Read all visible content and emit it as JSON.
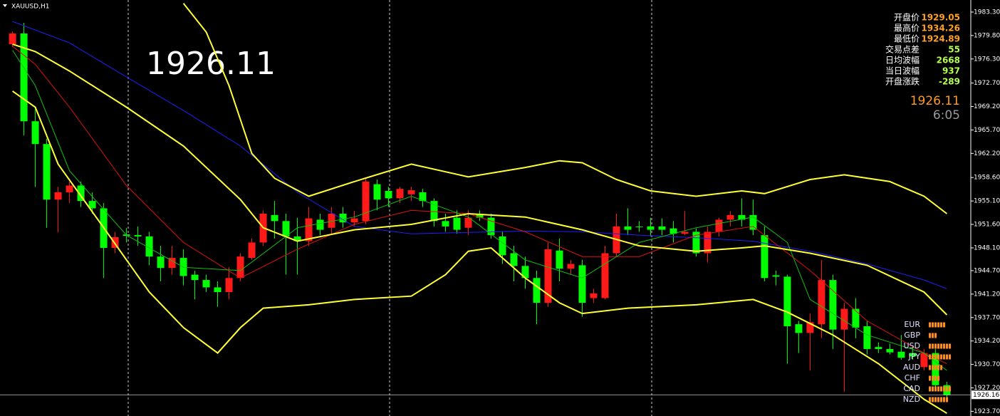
{
  "chart_data": {
    "type": "candlestick",
    "title": "XAUUSD,H1",
    "up_color": "#ff1a1a",
    "down_color": "#00ff00",
    "xlim": [
      -1.1,
      84.1
    ],
    "ylim": [
      1923.0,
      1985.1
    ],
    "yticks": [
      {
        "value": 1983.3,
        "label": "1983.30"
      },
      {
        "value": 1979.8,
        "label": "1979.80"
      },
      {
        "value": 1976.3,
        "label": "1976.30"
      },
      {
        "value": 1972.7,
        "label": "1972.70"
      },
      {
        "value": 1969.2,
        "label": "1969.20"
      },
      {
        "value": 1965.7,
        "label": "1965.70"
      },
      {
        "value": 1962.2,
        "label": "1962.20"
      },
      {
        "value": 1958.6,
        "label": "1958.60"
      },
      {
        "value": 1955.1,
        "label": "1955.10"
      },
      {
        "value": 1951.6,
        "label": "1951.60"
      },
      {
        "value": 1948.1,
        "label": "1948.10"
      },
      {
        "value": 1944.7,
        "label": "1944.70"
      },
      {
        "value": 1941.2,
        "label": "1941.20"
      },
      {
        "value": 1937.7,
        "label": "1937.70"
      },
      {
        "value": 1934.2,
        "label": "1934.20"
      },
      {
        "value": 1930.7,
        "label": "1930.70"
      },
      {
        "value": 1927.2,
        "label": "1927.20"
      },
      {
        "value": 1923.7,
        "label": "1923.70"
      }
    ],
    "current_price": 1926.16,
    "open": [
      1978.5,
      1980.1,
      1967.0,
      1963.6,
      1955.3,
      1956.4,
      1957.4,
      1955.1,
      1954.0,
      1948.1,
      1950.1,
      1950.0,
      1949.8,
      1946.8,
      1945.1,
      1946.6,
      1944.1,
      1943.3,
      1942.2,
      1941.5,
      1943.6,
      1946.6,
      1948.9,
      1953.0,
      1952.1,
      1949.8,
      1949.1,
      1952.3,
      1951.1,
      1953.2,
      1951.9,
      1952.1,
      1957.6,
      1956.6,
      1955.5,
      1956.1,
      1956.4,
      1955.1,
      1952.1,
      1952.6,
      1951.1,
      1953.2,
      1952.6,
      1949.8,
      1947.3,
      1945.4,
      1943.6,
      1939.9,
      1947.7,
      1945.0,
      1945.5,
      1940.6,
      1940.6,
      1947.3,
      1951.3,
      1951.3,
      1951.3,
      1951.3,
      1951.0,
      1950.2,
      1950.5,
      1947.3,
      1950.5,
      1952.3,
      1953.0,
      1953.0,
      1950.0,
      1944.0,
      1943.8,
      1936.7,
      1935.4,
      1936.7,
      1943.3,
      1935.9,
      1939.0,
      1936.4,
      1933.3,
      1933.0,
      1932.6,
      1932.4,
      1930.3,
      1932.4,
      1927.6
    ],
    "high": [
      1980.4,
      1981.7,
      1969.1,
      1964.4,
      1957.2,
      1958.0,
      1958.0,
      1956.4,
      1954.8,
      1950.5,
      1951.1,
      1951.3,
      1950.5,
      1948.4,
      1948.4,
      1947.9,
      1944.7,
      1944.1,
      1943.1,
      1945.2,
      1947.3,
      1949.5,
      1953.7,
      1955.1,
      1953.2,
      1952.6,
      1954.2,
      1953.2,
      1954.2,
      1954.2,
      1953.6,
      1958.5,
      1958.3,
      1957.2,
      1957.2,
      1957.2,
      1956.9,
      1955.5,
      1953.2,
      1953.7,
      1953.7,
      1953.7,
      1953.2,
      1950.5,
      1948.4,
      1946.8,
      1944.7,
      1948.9,
      1949.5,
      1946.3,
      1946.3,
      1942.0,
      1948.4,
      1953.2,
      1954.0,
      1952.1,
      1952.6,
      1952.5,
      1952.1,
      1953.6,
      1951.0,
      1951.3,
      1952.6,
      1953.6,
      1955.5,
      1955.3,
      1951.3,
      1944.7,
      1944.1,
      1937.2,
      1938.3,
      1946.3,
      1944.1,
      1939.9,
      1940.6,
      1937.2,
      1934.0,
      1933.8,
      1935.1,
      1933.5,
      1933.0,
      1933.0,
      1928.1
    ],
    "low": [
      1978.1,
      1964.9,
      1957.2,
      1951.1,
      1950.4,
      1954.8,
      1954.2,
      1953.2,
      1943.6,
      1947.3,
      1948.9,
      1948.4,
      1945.5,
      1943.1,
      1944.1,
      1942.5,
      1940.4,
      1941.5,
      1939.3,
      1940.4,
      1943.1,
      1946.3,
      1948.4,
      1949.5,
      1944.1,
      1944.1,
      1948.4,
      1950.0,
      1950.0,
      1951.1,
      1951.3,
      1951.6,
      1953.7,
      1954.2,
      1954.8,
      1955.1,
      1954.2,
      1951.3,
      1950.5,
      1950.2,
      1950.0,
      1952.1,
      1949.5,
      1945.7,
      1943.1,
      1942.0,
      1936.7,
      1939.3,
      1943.1,
      1944.1,
      1937.8,
      1939.9,
      1940.4,
      1946.8,
      1950.0,
      1950.5,
      1949.8,
      1950.0,
      1948.9,
      1950.0,
      1946.8,
      1945.9,
      1949.8,
      1951.3,
      1951.3,
      1950.0,
      1943.1,
      1942.5,
      1930.8,
      1932.4,
      1929.8,
      1934.6,
      1933.0,
      1926.6,
      1934.6,
      1932.2,
      1932.4,
      1932.2,
      1931.4,
      1931.4,
      1929.8,
      1926.8,
      1925.5
    ],
    "close": [
      1980.1,
      1967.0,
      1963.6,
      1955.3,
      1956.4,
      1957.4,
      1955.1,
      1954.0,
      1948.1,
      1949.7,
      1949.9,
      1949.8,
      1946.8,
      1945.1,
      1946.6,
      1943.9,
      1943.3,
      1942.2,
      1941.5,
      1943.6,
      1946.8,
      1948.9,
      1953.2,
      1952.1,
      1949.8,
      1949.1,
      1952.5,
      1950.8,
      1953.2,
      1951.9,
      1952.5,
      1958.0,
      1955.3,
      1955.5,
      1956.9,
      1956.7,
      1955.1,
      1952.1,
      1951.3,
      1950.8,
      1952.6,
      1952.6,
      1950.0,
      1947.0,
      1945.4,
      1943.6,
      1939.9,
      1947.9,
      1945.0,
      1945.7,
      1939.9,
      1941.3,
      1947.3,
      1951.3,
      1950.8,
      1951.2,
      1950.8,
      1950.8,
      1950.2,
      1950.5,
      1947.3,
      1950.5,
      1952.3,
      1953.0,
      1952.3,
      1950.8,
      1943.6,
      1943.8,
      1936.4,
      1935.4,
      1937.0,
      1943.3,
      1935.9,
      1939.0,
      1936.2,
      1933.0,
      1933.0,
      1932.5,
      1931.7,
      1931.9,
      1932.4,
      1927.6,
      1926.1
    ],
    "lines": [
      {
        "color": "#1e1eff",
        "width": 1,
        "x": [
          0,
          5,
          10,
          15,
          20,
          25,
          30,
          35,
          40,
          45,
          50,
          55,
          60,
          65,
          70,
          75,
          80,
          82
        ],
        "values": [
          1981.9,
          1978.7,
          1973.6,
          1968.6,
          1963.3,
          1956.4,
          1951.3,
          1950.2,
          1950.4,
          1950.6,
          1950.5,
          1950.0,
          1949.6,
          1949.1,
          1947.6,
          1945.7,
          1943.3,
          1942.0
        ]
      },
      {
        "color": "#e01010",
        "width": 1,
        "x": [
          0,
          2,
          5,
          10,
          15,
          20,
          25,
          30,
          35,
          40,
          45,
          50,
          55,
          60,
          65,
          70,
          75,
          80,
          82
        ],
        "values": [
          1978.2,
          1975.5,
          1969.1,
          1957.4,
          1948.9,
          1943.6,
          1947.9,
          1951.6,
          1953.7,
          1953.2,
          1950.5,
          1946.8,
          1946.8,
          1950.0,
          1951.3,
          1944.7,
          1937.2,
          1932.4,
          1930.8
        ]
      },
      {
        "color": "#10c010",
        "width": 1,
        "x": [
          0,
          2,
          5,
          10,
          15,
          20,
          25,
          30,
          35,
          40,
          45,
          50,
          55,
          60,
          65,
          68,
          70,
          75,
          80,
          82
        ],
        "values": [
          1977.6,
          1972.3,
          1959.6,
          1950.0,
          1945.2,
          1944.7,
          1951.1,
          1952.7,
          1955.8,
          1952.7,
          1946.3,
          1943.6,
          1948.9,
          1951.1,
          1952.7,
          1948.9,
          1940.4,
          1935.1,
          1932.4,
          1929.8
        ]
      },
      {
        "color": "#ffff33",
        "width": 2,
        "x": [
          15,
          17,
          19,
          21,
          23,
          26,
          30,
          35,
          40,
          45,
          48,
          50,
          53,
          56,
          60,
          64,
          66,
          70,
          73,
          77,
          80,
          82
        ],
        "values": [
          1984.6,
          1980.3,
          1972.3,
          1962.2,
          1958.5,
          1955.8,
          1958.0,
          1960.6,
          1958.7,
          1960.1,
          1961.1,
          1960.8,
          1958.3,
          1956.6,
          1955.8,
          1956.6,
          1956.2,
          1958.3,
          1959.0,
          1958.0,
          1955.8,
          1953.2
        ]
      },
      {
        "color": "#ffff33",
        "width": 2,
        "x": [
          0,
          2,
          5,
          10,
          15,
          20,
          22,
          25,
          30,
          35,
          40,
          45,
          50,
          55,
          60,
          64,
          66,
          70,
          75,
          80,
          82
        ],
        "values": [
          1978.5,
          1977.4,
          1974.5,
          1969.1,
          1963.3,
          1955.3,
          1951.1,
          1949.1,
          1950.8,
          1951.6,
          1953.2,
          1952.7,
          1950.8,
          1948.4,
          1947.6,
          1948.1,
          1948.4,
          1947.3,
          1945.5,
          1941.5,
          1938.1
        ]
      },
      {
        "color": "#ffff33",
        "width": 2,
        "x": [
          0,
          2,
          4,
          8,
          12,
          15,
          18,
          20,
          22,
          26,
          30,
          35,
          38,
          40,
          42,
          45,
          48,
          50,
          54,
          60,
          65,
          68,
          72,
          76,
          80,
          82
        ],
        "values": [
          1971.5,
          1969.1,
          1960.6,
          1951.1,
          1941.5,
          1936.2,
          1932.4,
          1936.2,
          1939.1,
          1939.6,
          1940.4,
          1940.9,
          1944.1,
          1947.6,
          1948.1,
          1943.6,
          1939.9,
          1938.3,
          1939.1,
          1939.6,
          1940.4,
          1938.5,
          1935.1,
          1930.8,
          1925.5,
          1923.4
        ]
      }
    ]
  },
  "big_price": 1926.11,
  "info_panel": {
    "rows": [
      {
        "label": "开盘价",
        "value": 1929.05
      },
      {
        "label": "最高价",
        "value": 1934.26
      },
      {
        "label": "最低价",
        "value": 1924.89
      },
      {
        "label": "交易点差",
        "value": 55
      },
      {
        "label": "日均波幅",
        "value": 2668
      },
      {
        "label": "当日波幅",
        "value": 937
      },
      {
        "label": "开盘涨跌",
        "value": -289
      }
    ],
    "price": 1926.11,
    "countdown": "6:05"
  },
  "currency_strength": {
    "currencies": [
      "EUR",
      "GBP",
      "USD",
      "JPY",
      "AUD",
      "CHF",
      "CAD",
      "NZD"
    ],
    "values": [
      6,
      3,
      8,
      8,
      5,
      4,
      8,
      7
    ]
  }
}
